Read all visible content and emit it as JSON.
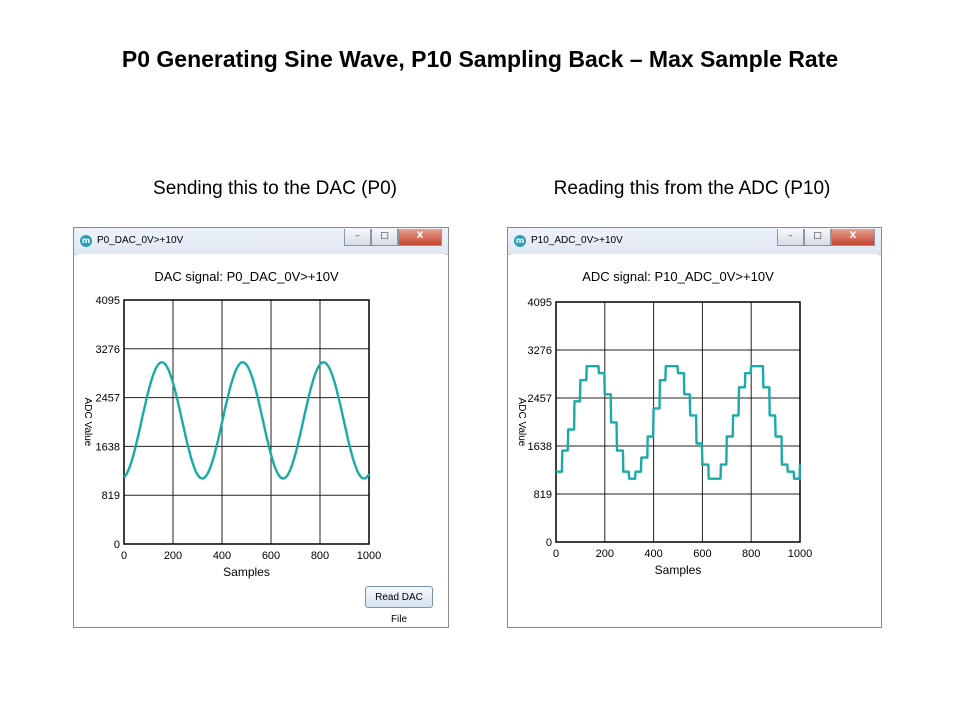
{
  "slide": {
    "title": "P0 Generating Sine Wave, P10 Sampling Back – Max Sample Rate",
    "caption_left": "Sending this to the DAC (P0)",
    "caption_right": "Reading this from the ADC (P10)"
  },
  "windows": [
    {
      "title": "P0_DAC_0V>+10V",
      "icon": "maxim-app-icon",
      "controls": {
        "minimize": "–",
        "maximize": "□",
        "close": "X"
      },
      "button_label": "Read DAC File"
    },
    {
      "title": "P10_ADC_0V>+10V",
      "icon": "maxim-app-icon",
      "controls": {
        "minimize": "–",
        "maximize": "□",
        "close": "X"
      }
    }
  ],
  "chart_data": [
    {
      "type": "line",
      "title": "DAC signal: P0_DAC_0V>+10V",
      "xlabel": "Samples",
      "ylabel": "ADC Value",
      "xlim": [
        0,
        1000
      ],
      "ylim": [
        0,
        4095
      ],
      "x_ticks": [
        "0",
        "200",
        "400",
        "600",
        "800",
        "1000"
      ],
      "y_ticks": [
        "0",
        "819",
        "1638",
        "2457",
        "3276",
        "4095"
      ],
      "grid": true,
      "color": "#1aaaa8",
      "series": [
        {
          "stepped": false,
          "x": [
            0,
            100,
            230,
            450,
            580,
            800,
            920,
            1000
          ],
          "y": [
            1638,
            1100,
            3050,
            1100,
            3050,
            1100,
            3050,
            1150
          ]
        }
      ]
    },
    {
      "type": "line",
      "title": "ADC signal: P10_ADC_0V>+10V",
      "xlabel": "Samples",
      "ylabel": "ADC Value",
      "xlim": [
        0,
        1000
      ],
      "ylim": [
        0,
        4095
      ],
      "x_ticks": [
        "0",
        "200",
        "400",
        "600",
        "800",
        "1000"
      ],
      "y_ticks": [
        "0",
        "819",
        "1638",
        "2457",
        "3276",
        "4095"
      ],
      "grid": true,
      "color": "#1aaaa8",
      "series": [
        {
          "stepped": true,
          "x": [
            0,
            100,
            230,
            390,
            530,
            720,
            870,
            1000
          ],
          "y": [
            1700,
            1100,
            3050,
            1100,
            3050,
            1100,
            3050,
            1300
          ]
        }
      ]
    }
  ]
}
